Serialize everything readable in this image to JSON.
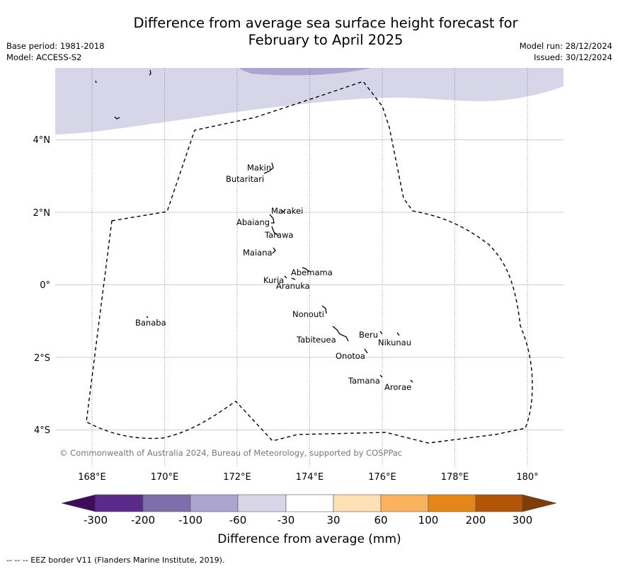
{
  "title_line1": "Difference from average sea surface height forecast for",
  "title_line2": "February to April 2025",
  "base_period": "Base period: 1981-2018",
  "model": "Model: ACCESS-S2",
  "model_run": "Model run: 28/12/2024",
  "issued": "Issued: 30/12/2024",
  "copyright": "© Commonwealth of Australia 2024, Bureau of Meteorology, supported by COSPPac",
  "lat_labels": [
    "4°N",
    "2°N",
    "0°",
    "2°S",
    "4°S"
  ],
  "lon_labels": [
    "168°E",
    "170°E",
    "172°E",
    "174°E",
    "176°E",
    "178°E",
    "180°"
  ],
  "islands": [
    "Makin",
    "Butaritari",
    "Marakei",
    "Abaiang",
    "Tarawa",
    "Maiana",
    "Abemama",
    "Kuria",
    "Aranuka",
    "Banaba",
    "Nonouti",
    "Beru",
    "Nikunau",
    "Tabiteuea",
    "Onotoa",
    "Tamana",
    "Arorae"
  ],
  "colorbar": {
    "label": "Difference from average (mm)",
    "ticks": [
      "-300",
      "-200",
      "-100",
      "-60",
      "-30",
      "30",
      "60",
      "100",
      "200",
      "300"
    ],
    "colors": [
      "#3f0b5c",
      "#5a2a8a",
      "#7e6fab",
      "#aba5cf",
      "#d6d6e8",
      "#ffffff",
      "#fde0b4",
      "#fbb25e",
      "#e58619",
      "#b25508",
      "#7e3c06"
    ]
  },
  "footer": "--  --  -- EEZ border V11 (Flanders Marine Institute, 2019)."
}
